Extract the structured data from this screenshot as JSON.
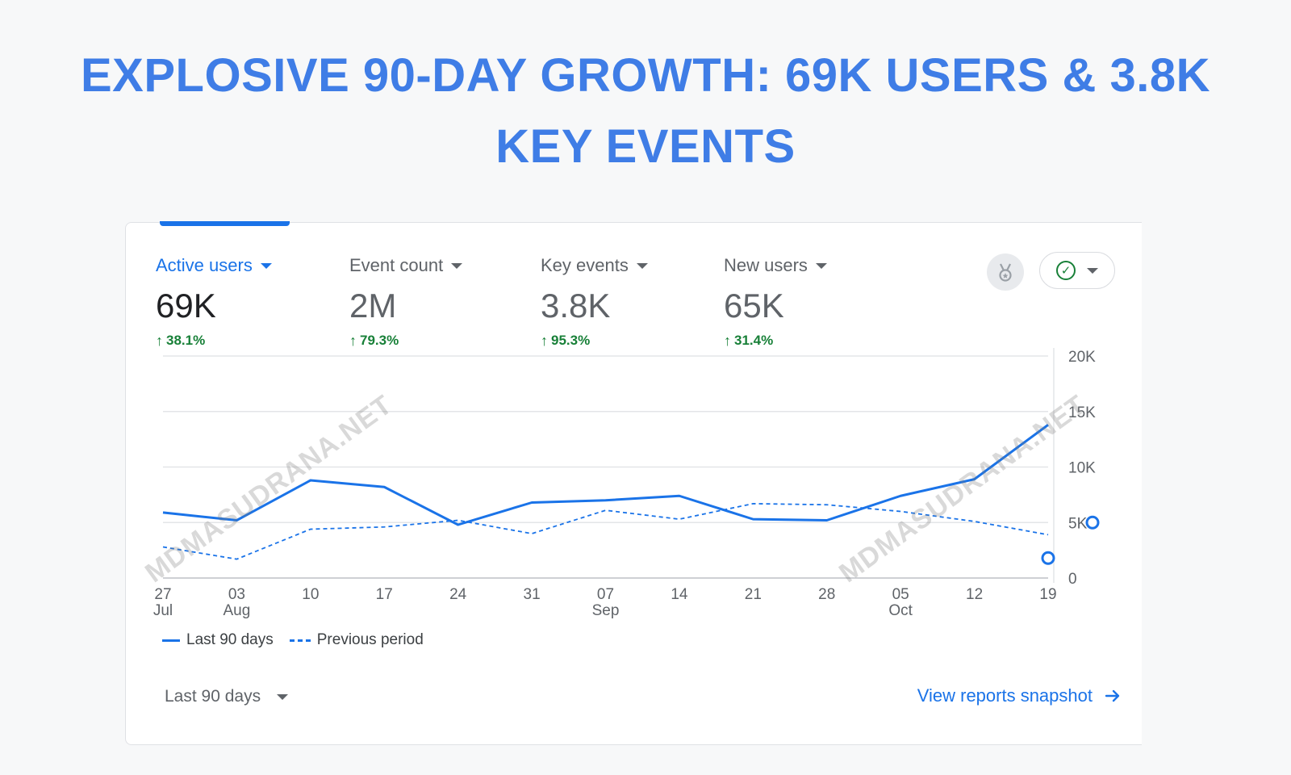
{
  "headline": "EXPLOSIVE 90-DAY GROWTH: 69K USERS & 3.8K KEY EVENTS",
  "metrics": [
    {
      "label": "Active users",
      "value": "69K",
      "change": "38.1%",
      "active": true
    },
    {
      "label": "Event count",
      "value": "2M",
      "change": "79.3%",
      "active": false
    },
    {
      "label": "Key events",
      "value": "3.8K",
      "change": "95.3%",
      "active": false
    },
    {
      "label": "New users",
      "value": "65K",
      "change": "31.4%",
      "active": false
    }
  ],
  "icons": {
    "insights": "insights-badge-icon",
    "status": "check-circle-icon",
    "change": "arrow-up-icon",
    "link": "arrow-right-icon"
  },
  "chart_data": {
    "type": "line",
    "x_ticks": [
      {
        "day": "27",
        "month": "Jul"
      },
      {
        "day": "03",
        "month": "Aug"
      },
      {
        "day": "10",
        "month": ""
      },
      {
        "day": "17",
        "month": ""
      },
      {
        "day": "24",
        "month": ""
      },
      {
        "day": "31",
        "month": ""
      },
      {
        "day": "07",
        "month": "Sep"
      },
      {
        "day": "14",
        "month": ""
      },
      {
        "day": "21",
        "month": ""
      },
      {
        "day": "28",
        "month": ""
      },
      {
        "day": "05",
        "month": "Oct"
      },
      {
        "day": "12",
        "month": ""
      },
      {
        "day": "19",
        "month": ""
      }
    ],
    "y_ticks": [
      "0",
      "5K",
      "10K",
      "15K",
      "20K"
    ],
    "ylim": [
      0,
      20000
    ],
    "series": [
      {
        "name": "Last 90 days",
        "style": "solid",
        "values": [
          5900,
          5200,
          8800,
          8200,
          4800,
          6800,
          7000,
          7400,
          5300,
          5200,
          7400,
          8900,
          13800
        ]
      },
      {
        "name": "Previous period",
        "style": "dashed",
        "values": [
          2800,
          1700,
          4400,
          4600,
          5200,
          4000,
          6100,
          5300,
          6700,
          6600,
          6000,
          5100,
          3900
        ]
      }
    ],
    "grid": true,
    "legend_position": "bottom-left",
    "color": "#1a73e8"
  },
  "footer": {
    "range_label": "Last 90 days",
    "link_label": "View reports snapshot"
  },
  "watermark": "MDMASUDRANA.NET",
  "colors": {
    "accent": "#1a73e8",
    "positive": "#188038",
    "headline": "#3f7de6"
  }
}
